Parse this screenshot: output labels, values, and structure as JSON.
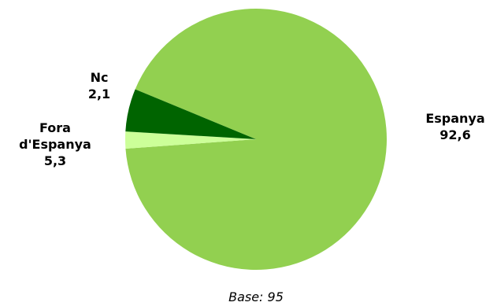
{
  "chart_data": {
    "type": "pie",
    "slices": [
      {
        "label": "Espanya",
        "value": 92.6,
        "display_value": "92,6",
        "color": "#92d050",
        "label_lines": [
          "Espanya"
        ]
      },
      {
        "label": "Nc",
        "value": 2.1,
        "display_value": "2,1",
        "color": "#ccff99",
        "label_lines": [
          "Nc"
        ]
      },
      {
        "label": "Fora d'Espanya",
        "value": 5.3,
        "display_value": "5,3",
        "color": "#006400",
        "label_lines": [
          "Fora",
          "d'Espanya"
        ]
      }
    ],
    "footnote": "Base: 95",
    "legend": "none"
  }
}
